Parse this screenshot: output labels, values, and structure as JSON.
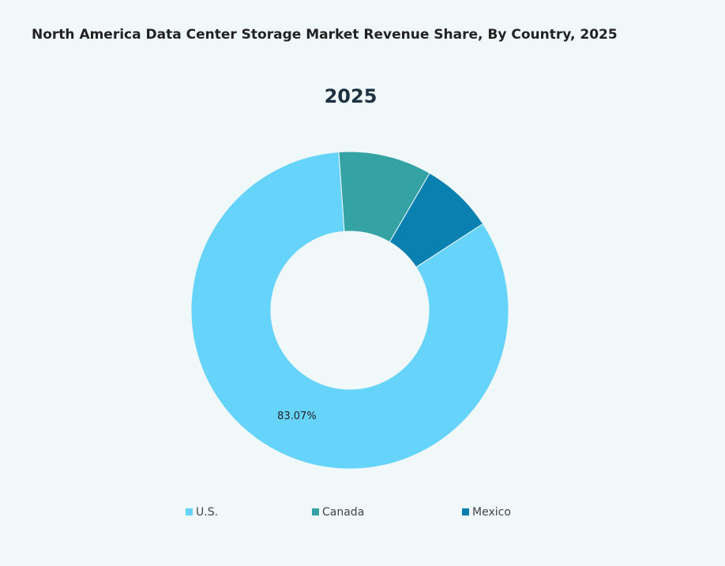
{
  "chart_data": {
    "type": "pie",
    "title": "North America Data Center Storage Market Revenue Share, By Country, 2025",
    "subtitle": "2025",
    "categories": [
      "U.S.",
      "Canada",
      "Mexico"
    ],
    "values": [
      83.07,
      9.5,
      7.43
    ],
    "value_labels": [
      "83.07%",
      null,
      null
    ],
    "colors": [
      "#66d3fb",
      "#35a3a3",
      "#0a80b0"
    ],
    "donut": true,
    "legend": "bottom"
  }
}
